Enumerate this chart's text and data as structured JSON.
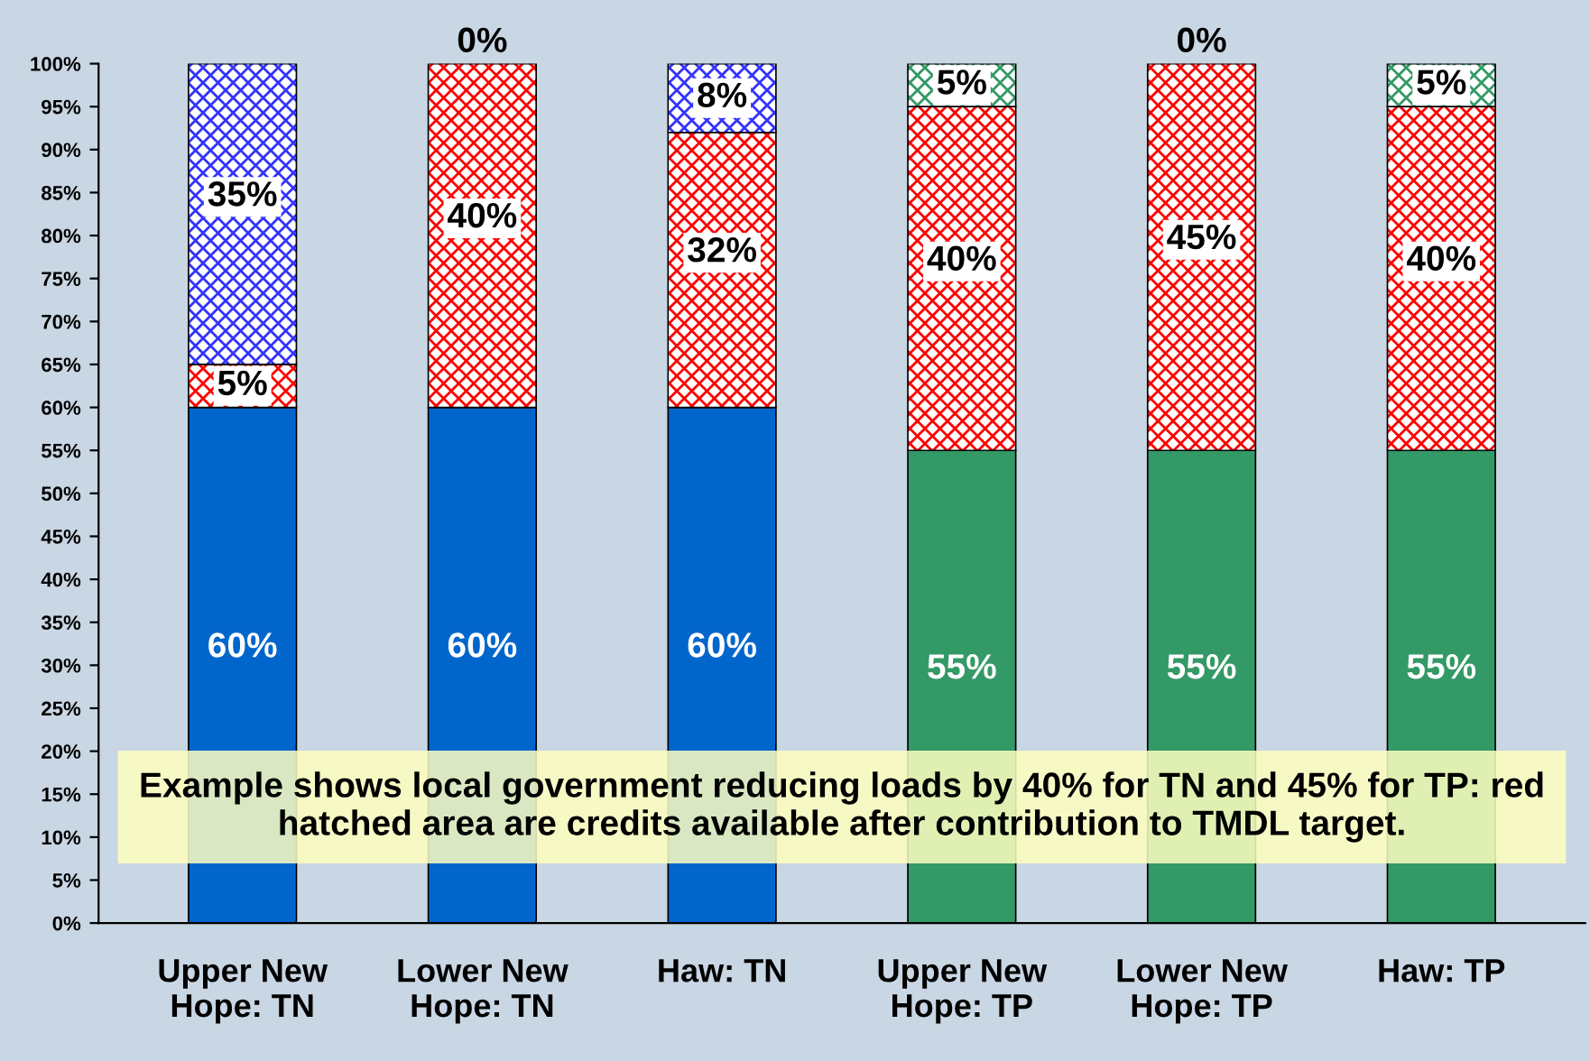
{
  "chart_data": {
    "type": "bar",
    "stacked": true,
    "categories": [
      "Upper New\nHope: TN",
      "Lower New\nHope: TN",
      "Haw: TN",
      "Upper New\nHope: TP",
      "Lower New\nHope: TP",
      "Haw: TP"
    ],
    "series": [
      {
        "colors": [
          "#0066cc",
          "#0066cc",
          "#0066cc",
          "#339966",
          "#339966",
          "#339966"
        ],
        "values": [
          60,
          60,
          60,
          55,
          55,
          55
        ],
        "value_labels": [
          "60%",
          "60%",
          "60%",
          "55%",
          "55%",
          "55%"
        ]
      },
      {
        "color": "#ff0000",
        "values": [
          5,
          40,
          32,
          40,
          45,
          40
        ],
        "value_labels": [
          "5%",
          "40%",
          "32%",
          "40%",
          "45%",
          "40%"
        ]
      },
      {
        "colors": [
          "#3333ff",
          "#3333ff",
          "#3333ff",
          "#339966",
          "#339966",
          "#339966"
        ],
        "values": [
          35,
          0,
          8,
          5,
          0,
          5
        ],
        "value_labels": [
          "35%",
          "0%",
          "8%",
          "5%",
          "0%",
          "5%"
        ]
      }
    ],
    "ylim": [
      0,
      100
    ],
    "yticks": [
      {
        "value": 0,
        "label": "0%"
      },
      {
        "value": 5,
        "label": "5%"
      },
      {
        "value": 10,
        "label": "10%"
      },
      {
        "value": 15,
        "label": "15%"
      },
      {
        "value": 20,
        "label": "20%"
      },
      {
        "value": 25,
        "label": "25%"
      },
      {
        "value": 30,
        "label": "30%"
      },
      {
        "value": 35,
        "label": "35%"
      },
      {
        "value": 40,
        "label": "40%"
      },
      {
        "value": 45,
        "label": "45%"
      },
      {
        "value": 50,
        "label": "50%"
      },
      {
        "value": 55,
        "label": "55%"
      },
      {
        "value": 60,
        "label": "60%"
      },
      {
        "value": 65,
        "label": "65%"
      },
      {
        "value": 70,
        "label": "70%"
      },
      {
        "value": 75,
        "label": "75%"
      },
      {
        "value": 80,
        "label": "80%"
      },
      {
        "value": 85,
        "label": "85%"
      },
      {
        "value": 90,
        "label": "90%"
      },
      {
        "value": 95,
        "label": "95%"
      },
      {
        "value": 100,
        "label": "100%"
      }
    ],
    "annotations": [
      "Example shows local government reducing loads by 40% for TN and 45% for TP: red hatched area are credits available after contribution to TMDL target."
    ],
    "grid": false,
    "legend": false
  }
}
